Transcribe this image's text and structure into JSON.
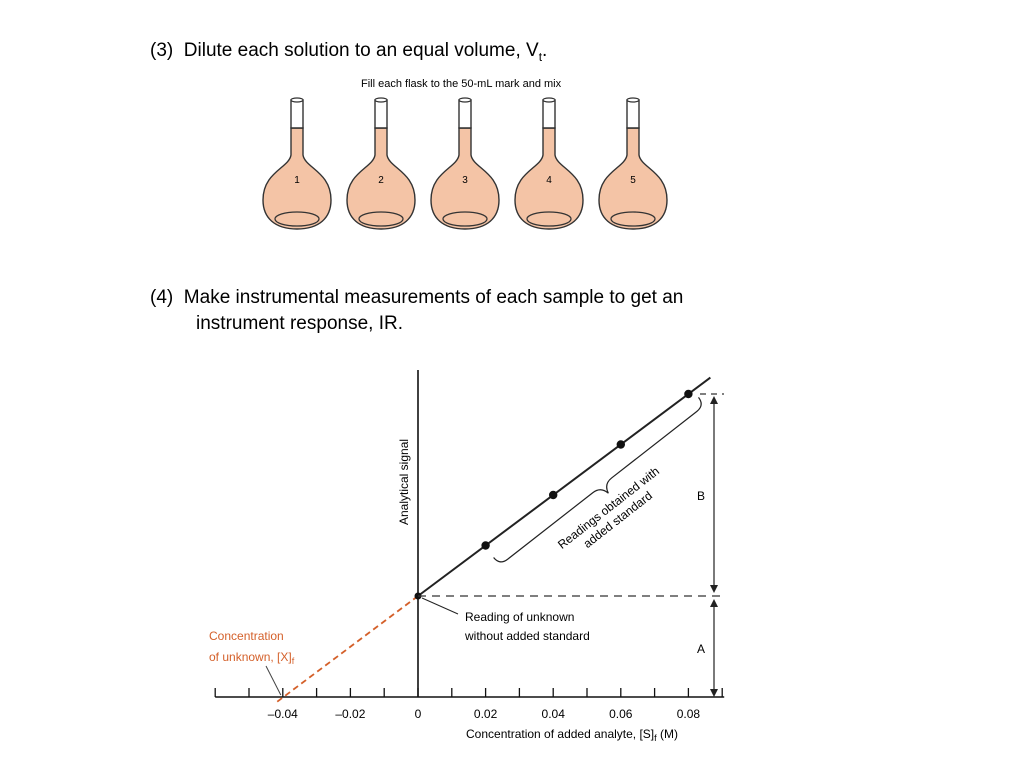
{
  "steps": {
    "step3": {
      "number": "(3)",
      "text": "Dilute each solution to an equal volume, V",
      "subscript": "t",
      "tail": "."
    },
    "step4": {
      "number": "(4)",
      "line1": "Make instrumental measurements of each sample to get an",
      "line2": "instrument response, IR."
    }
  },
  "flasks": {
    "caption": "Fill each flask to the 50-mL mark and mix",
    "labels": [
      "1",
      "2",
      "3",
      "4",
      "5"
    ],
    "liquid_color": "#f4c4a6"
  },
  "chart_data": {
    "type": "line",
    "x": [
      0,
      0.02,
      0.04,
      0.06,
      0.08
    ],
    "y": [
      1.0,
      1.5,
      2.0,
      2.5,
      3.0
    ],
    "ylabel": "Analytical signal",
    "xlabel_main": "Concentration of added analyte, [S]",
    "xlabel_sub": "f",
    "xlabel_unit": " (M)",
    "x_ticks": [
      "–0.04",
      "–0.02",
      "0",
      "0.02",
      "0.04",
      "0.06",
      "0.08"
    ],
    "x_tick_values": [
      -0.04,
      -0.02,
      0,
      0.02,
      0.04,
      0.06,
      0.08
    ],
    "xlim": [
      -0.06,
      0.09
    ],
    "extrapolation": {
      "x_intercept": -0.04,
      "color": "#d4602a"
    },
    "annotations": {
      "readings_line1": "Readings obtained with",
      "readings_line2": "added standard",
      "unknown_line1": "Reading of unknown",
      "unknown_line2": "without added standard",
      "conc_line1": "Concentration",
      "conc_line2": "of unknown, [X]",
      "conc_sub": "f",
      "label_A": "A",
      "label_B": "B"
    }
  }
}
